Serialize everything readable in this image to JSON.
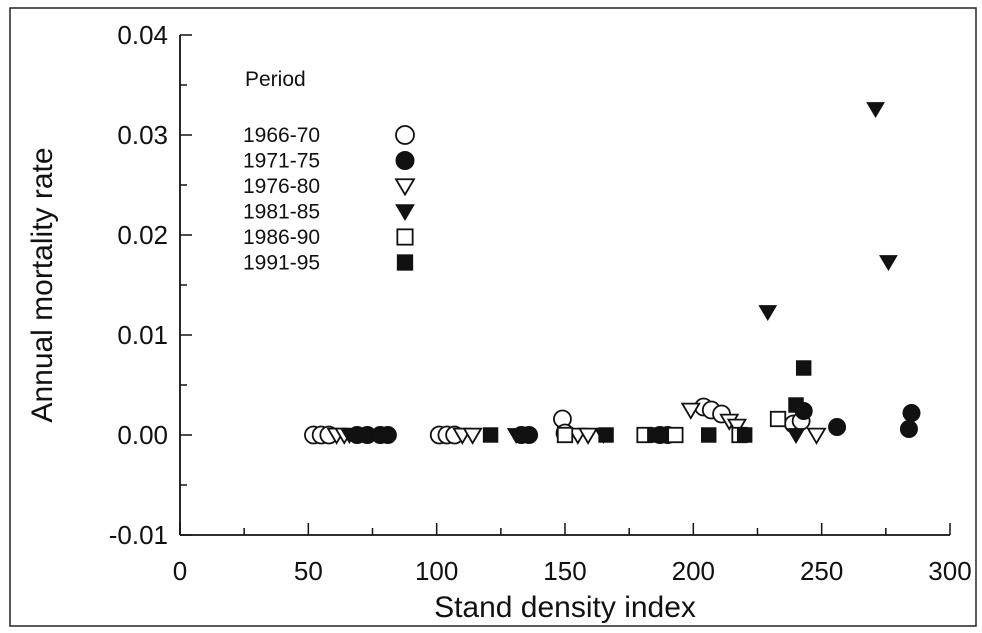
{
  "chart_data": {
    "type": "scatter",
    "xlabel": "Stand density index",
    "ylabel": "Annual mortality rate",
    "xlim": [
      0,
      300
    ],
    "ylim": [
      -0.01,
      0.04
    ],
    "xticks": [
      "0",
      "50",
      "100",
      "150",
      "200",
      "250",
      "300"
    ],
    "yticks": [
      "-0.01",
      "0.00",
      "0.01",
      "0.02",
      "0.03",
      "0.04"
    ],
    "grid": false,
    "legend_title": "Period",
    "legend_position": "top-left",
    "series": [
      {
        "name": "1966-70",
        "marker": "open-circle",
        "points": [
          [
            52,
            0
          ],
          [
            55,
            0
          ],
          [
            58,
            0
          ],
          [
            101,
            0
          ],
          [
            104,
            0
          ],
          [
            107,
            0
          ],
          [
            149,
            0.0016
          ],
          [
            150,
            0.0002
          ],
          [
            204,
            0.0028
          ],
          [
            207,
            0.0025
          ],
          [
            211,
            0.0021
          ],
          [
            239,
            0.0011
          ],
          [
            242,
            0.0014
          ]
        ]
      },
      {
        "name": "1971-75",
        "marker": "filled-circle",
        "points": [
          [
            69,
            0
          ],
          [
            73,
            0
          ],
          [
            78,
            0
          ],
          [
            81,
            0
          ],
          [
            133,
            0
          ],
          [
            136,
            0
          ],
          [
            187,
            0
          ],
          [
            190,
            0
          ],
          [
            243,
            0.0024
          ],
          [
            256,
            0.0008
          ],
          [
            285,
            0.0022
          ],
          [
            284,
            0.0006
          ]
        ]
      },
      {
        "name": "1976-80",
        "marker": "open-triangle-down",
        "points": [
          [
            61,
            0
          ],
          [
            64,
            0
          ],
          [
            110,
            0
          ],
          [
            114,
            0
          ],
          [
            155,
            0
          ],
          [
            159,
            0
          ],
          [
            199,
            0.0025
          ],
          [
            214,
            0.0014
          ],
          [
            217,
            0.0009
          ],
          [
            248,
            0
          ]
        ]
      },
      {
        "name": "1981-85",
        "marker": "filled-triangle-down",
        "points": [
          [
            66,
            0
          ],
          [
            131,
            0
          ],
          [
            165,
            0
          ],
          [
            229,
            0.0123
          ],
          [
            240,
            0
          ],
          [
            271,
            0.0326
          ],
          [
            276,
            0.0173
          ]
        ]
      },
      {
        "name": "1986-90",
        "marker": "open-square",
        "points": [
          [
            150,
            0
          ],
          [
            181,
            0
          ],
          [
            193,
            0
          ],
          [
            218,
            0
          ],
          [
            233,
            0.0016
          ]
        ]
      },
      {
        "name": "1991-95",
        "marker": "filled-square",
        "points": [
          [
            72,
            0
          ],
          [
            121,
            0
          ],
          [
            166,
            0
          ],
          [
            185,
            0
          ],
          [
            206,
            0
          ],
          [
            220,
            0
          ],
          [
            240,
            0.003
          ],
          [
            243,
            0.0067
          ]
        ]
      }
    ]
  }
}
